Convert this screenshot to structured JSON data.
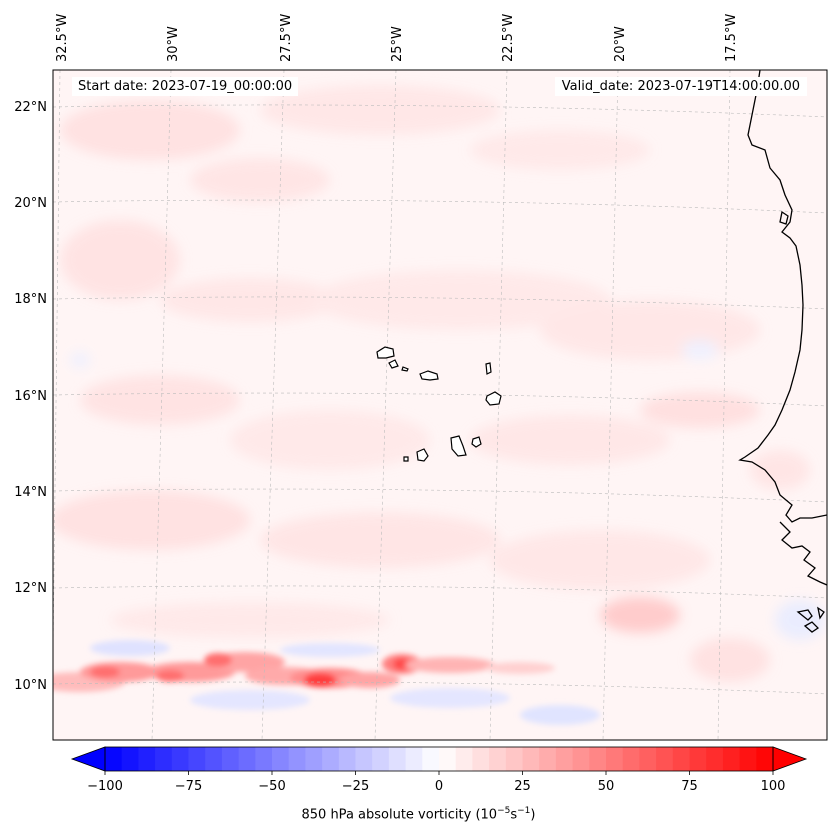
{
  "map": {
    "start_date_label": "Start date: 2023-07-19_00:00:00",
    "valid_date_label": "Valid_date: 2023-07-19T14:00:00.00",
    "longitude_labels": [
      "32.5°W",
      "30°W",
      "27.5°W",
      "25°W",
      "22.5°W",
      "20°W",
      "17.5°W"
    ],
    "latitude_labels": [
      "22°N",
      "20°N",
      "18°N",
      "16°N",
      "14°N",
      "12°N",
      "10°N"
    ],
    "field": "850 hPa absolute vorticity",
    "extent": {
      "lon_min": -33.5,
      "lon_max": -16.5,
      "lat_min": 9.0,
      "lat_max": 22.7
    },
    "feature_labels": [
      "Cape Verde Islands",
      "West African coastline"
    ]
  },
  "colorbar": {
    "label_prefix": "850 hPa absolute vorticity (10",
    "label_exp1": "−5",
    "label_mid": "s",
    "label_exp2": "−1",
    "label_suffix": ")",
    "ticks": [
      "−100",
      "−75",
      "−50",
      "−25",
      "0",
      "25",
      "50",
      "75",
      "100"
    ],
    "min": -100,
    "max": 100,
    "colormap": "bwr",
    "colors": {
      "negative": "#0000ff",
      "zero": "#ffffff",
      "positive": "#ff0000"
    }
  }
}
